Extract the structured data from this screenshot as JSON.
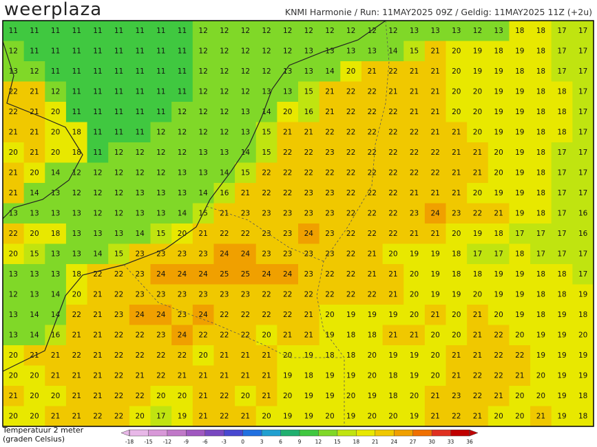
{
  "header": {
    "logo": "weerplaza",
    "title": "KNMI Harmonie / Run: 11MAY2025 09Z / Geldig: 11MAY2025 11Z (+2u)"
  },
  "legend": {
    "label_lines": [
      "Temperatuur 2 meter",
      "(graden Celsius)"
    ],
    "ticks": [
      -18,
      -15,
      -12,
      -9,
      -6,
      -3,
      0,
      3,
      6,
      9,
      12,
      15,
      18,
      21,
      24,
      27,
      30,
      33,
      36
    ],
    "colors": [
      "#e8b8e8",
      "#d898d8",
      "#c078c8",
      "#a058c0",
      "#7848c0",
      "#4848d0",
      "#2070e0",
      "#20a0d0",
      "#20b070",
      "#40c840",
      "#80d828",
      "#c0e410",
      "#e8e800",
      "#f0c800",
      "#f0a000",
      "#f07000",
      "#e03020",
      "#c00000"
    ]
  },
  "map": {
    "grid": [
      [
        11,
        11,
        11,
        11,
        11,
        11,
        11,
        11,
        11,
        12,
        12,
        12,
        12,
        12,
        12,
        12,
        12,
        12,
        12,
        13,
        13,
        13,
        12,
        13,
        18,
        18,
        17,
        17
      ],
      [
        12,
        11,
        11,
        11,
        11,
        11,
        11,
        11,
        11,
        12,
        12,
        12,
        12,
        12,
        13,
        13,
        13,
        13,
        14,
        15,
        21,
        20,
        19,
        18,
        19,
        18,
        17,
        17
      ],
      [
        13,
        12,
        11,
        11,
        11,
        11,
        11,
        11,
        11,
        12,
        12,
        12,
        12,
        13,
        13,
        14,
        20,
        21,
        22,
        21,
        21,
        20,
        19,
        19,
        18,
        18,
        17,
        17
      ],
      [
        22,
        21,
        12,
        11,
        11,
        11,
        11,
        11,
        11,
        12,
        12,
        12,
        13,
        13,
        15,
        21,
        22,
        22,
        21,
        21,
        21,
        20,
        20,
        19,
        19,
        18,
        18,
        17
      ],
      [
        22,
        21,
        20,
        11,
        11,
        11,
        11,
        11,
        12,
        12,
        12,
        13,
        14,
        20,
        16,
        21,
        22,
        22,
        22,
        21,
        21,
        20,
        20,
        19,
        19,
        18,
        18,
        17
      ],
      [
        21,
        21,
        20,
        18,
        11,
        11,
        11,
        12,
        12,
        12,
        12,
        13,
        15,
        21,
        21,
        22,
        22,
        22,
        22,
        22,
        21,
        21,
        20,
        19,
        19,
        18,
        18,
        17
      ],
      [
        20,
        21,
        20,
        18,
        11,
        12,
        12,
        12,
        12,
        13,
        13,
        14,
        15,
        22,
        22,
        23,
        22,
        22,
        22,
        22,
        22,
        21,
        21,
        20,
        19,
        18,
        17,
        17
      ],
      [
        21,
        20,
        14,
        12,
        12,
        12,
        12,
        12,
        13,
        13,
        14,
        15,
        22,
        22,
        22,
        22,
        22,
        22,
        22,
        22,
        22,
        21,
        21,
        20,
        19,
        18,
        17,
        17
      ],
      [
        21,
        14,
        13,
        12,
        12,
        12,
        13,
        13,
        13,
        14,
        16,
        21,
        22,
        22,
        23,
        23,
        22,
        22,
        22,
        21,
        21,
        21,
        20,
        19,
        19,
        18,
        17,
        17
      ],
      [
        13,
        13,
        13,
        13,
        12,
        12,
        13,
        13,
        14,
        15,
        21,
        23,
        23,
        23,
        23,
        23,
        22,
        22,
        22,
        23,
        24,
        23,
        22,
        21,
        19,
        18,
        17,
        16
      ],
      [
        22,
        20,
        18,
        13,
        13,
        13,
        14,
        15,
        20,
        21,
        22,
        22,
        23,
        23,
        24,
        23,
        22,
        22,
        22,
        21,
        21,
        20,
        19,
        18,
        17,
        17,
        17,
        16
      ],
      [
        20,
        15,
        13,
        13,
        14,
        15,
        23,
        23,
        23,
        23,
        24,
        24,
        23,
        23,
        23,
        23,
        22,
        21,
        20,
        19,
        19,
        18,
        17,
        17,
        18,
        17,
        17,
        17
      ],
      [
        13,
        13,
        13,
        18,
        22,
        22,
        23,
        24,
        24,
        24,
        25,
        25,
        24,
        24,
        23,
        22,
        22,
        21,
        21,
        20,
        19,
        18,
        18,
        19,
        19,
        18,
        18,
        17
      ],
      [
        12,
        13,
        14,
        20,
        21,
        22,
        23,
        23,
        23,
        23,
        23,
        23,
        22,
        22,
        22,
        22,
        22,
        22,
        21,
        20,
        19,
        19,
        20,
        19,
        19,
        18,
        18,
        19
      ],
      [
        13,
        14,
        14,
        22,
        21,
        23,
        24,
        24,
        23,
        24,
        22,
        22,
        22,
        22,
        21,
        20,
        19,
        19,
        19,
        20,
        21,
        20,
        21,
        20,
        19,
        18,
        19,
        18
      ],
      [
        13,
        14,
        16,
        21,
        21,
        22,
        22,
        23,
        24,
        22,
        22,
        22,
        20,
        21,
        21,
        19,
        18,
        18,
        21,
        21,
        20,
        20,
        21,
        22,
        20,
        19,
        19,
        20
      ],
      [
        20,
        21,
        21,
        22,
        21,
        22,
        22,
        22,
        22,
        20,
        21,
        21,
        21,
        20,
        19,
        18,
        18,
        20,
        19,
        19,
        20,
        21,
        21,
        22,
        22,
        19,
        19,
        19
      ],
      [
        20,
        20,
        21,
        21,
        21,
        22,
        21,
        22,
        21,
        21,
        21,
        21,
        21,
        19,
        18,
        19,
        19,
        20,
        18,
        19,
        20,
        21,
        22,
        22,
        21,
        20,
        19,
        19
      ],
      [
        21,
        20,
        20,
        21,
        21,
        22,
        22,
        20,
        20,
        21,
        22,
        20,
        21,
        20,
        19,
        19,
        20,
        19,
        18,
        20,
        21,
        23,
        22,
        21,
        20,
        20,
        19,
        18
      ],
      [
        20,
        20,
        21,
        21,
        22,
        22,
        20,
        17,
        19,
        21,
        22,
        21,
        20,
        19,
        19,
        20,
        19,
        20,
        20,
        19,
        21,
        22,
        21,
        20,
        20,
        21,
        19,
        18
      ]
    ]
  }
}
